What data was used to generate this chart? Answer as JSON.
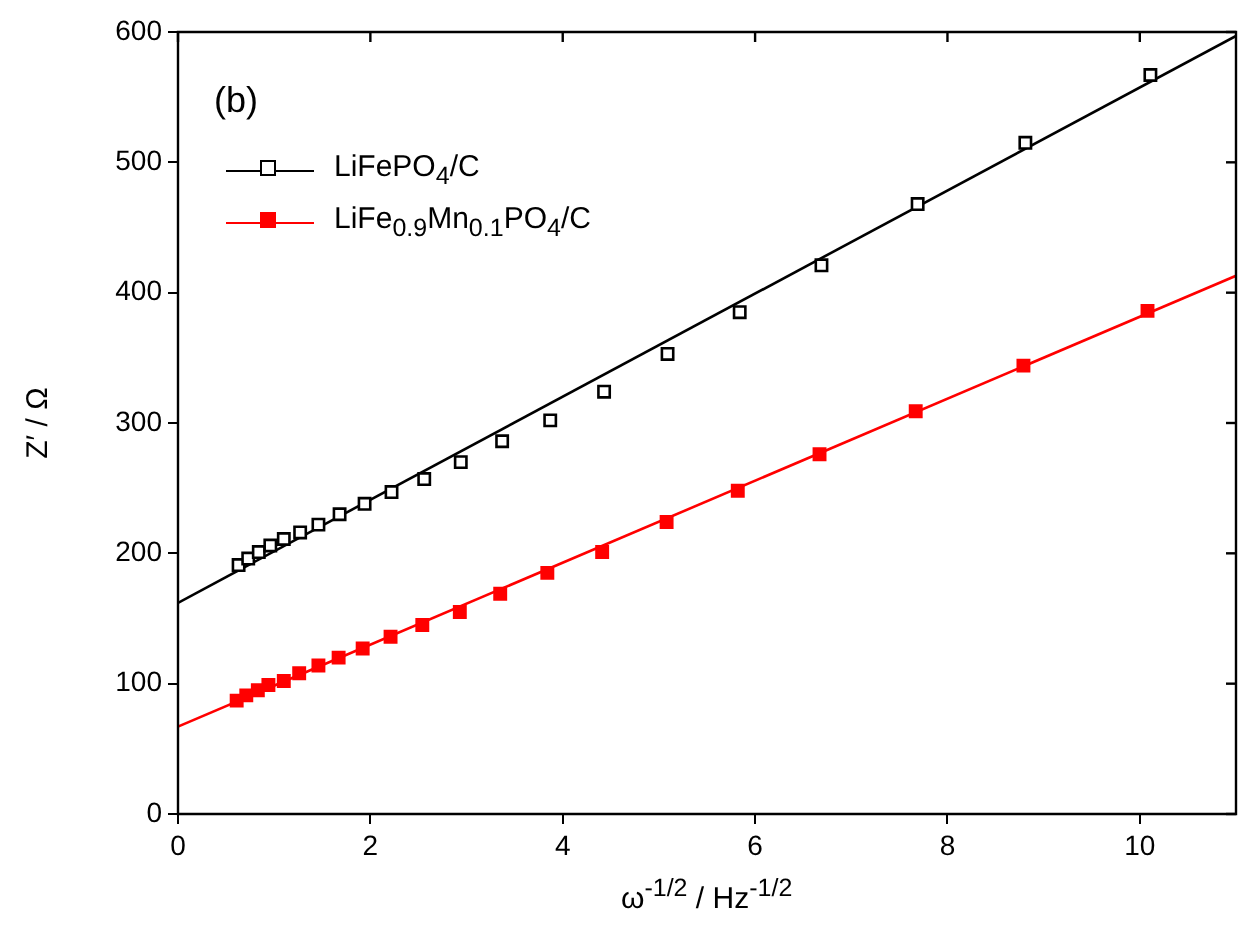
{
  "chart_data": {
    "type": "scatter",
    "xlabel": "ω$^{-1/2}$ / Hz$^{-1/2}$",
    "ylabel": "Z′ / Ω",
    "annotations": [
      "(b)"
    ],
    "xlim": [
      0,
      11
    ],
    "xticks": [
      0,
      2,
      4,
      6,
      8,
      10
    ],
    "ylim": [
      0,
      600
    ],
    "yticks": [
      0,
      100,
      200,
      300,
      400,
      500,
      600
    ],
    "grid": false,
    "legend": "top left",
    "marker": "square",
    "series": [
      {
        "name": "LiFePO$_{4}$/C",
        "color": "#000000",
        "x": [
          0.63,
          0.73,
          0.84,
          0.96,
          1.1,
          1.27,
          1.46,
          1.68,
          1.94,
          2.22,
          2.56,
          2.94,
          3.37,
          3.87,
          4.43,
          5.09,
          5.84,
          6.69,
          7.69,
          8.81,
          10.11
        ],
        "values": [
          191,
          196,
          201,
          206,
          211,
          216,
          222,
          230,
          238,
          247,
          257,
          270,
          286,
          302,
          324,
          353,
          385,
          421,
          468,
          515,
          567
        ]
      },
      {
        "name": "LiFe$_{0.9}$Mn$_{0.1}$PO$_{4}$/C",
        "color": "#ff0000",
        "x": [
          0.61,
          0.71,
          0.83,
          0.94,
          1.1,
          1.26,
          1.46,
          1.67,
          1.92,
          2.21,
          2.54,
          2.93,
          3.35,
          3.84,
          4.41,
          5.08,
          5.82,
          6.67,
          7.67,
          8.79,
          10.08
        ],
        "values": [
          87,
          91,
          95,
          99,
          102,
          108,
          114,
          120,
          127,
          136,
          145,
          155,
          169,
          185,
          201,
          224,
          248,
          276,
          309,
          344,
          386
        ]
      },
      {
        "type": "line",
        "color": "#000000",
        "marker": "none",
        "x": [
          0,
          11
        ],
        "values": [
          162,
          597
        ]
      },
      {
        "type": "line",
        "color": "#ff0000",
        "marker": "none",
        "x": [
          0,
          11
        ],
        "values": [
          67,
          413
        ]
      }
    ]
  }
}
